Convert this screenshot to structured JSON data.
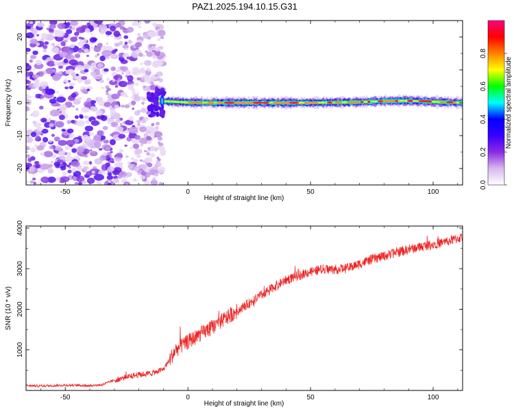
{
  "title": "PAZ1.2025.194.10.15.G31",
  "chart_data": [
    {
      "type": "heatmap",
      "xlabel": "Height of straight line (km)",
      "ylabel": "Frequency (Hz)",
      "xlim": [
        -66,
        112
      ],
      "ylim": [
        -25,
        25
      ],
      "x_ticks": [
        -50,
        0,
        50,
        100
      ],
      "y_ticks": [
        -20,
        -10,
        0,
        10,
        20
      ],
      "colorbar": {
        "label": "Normalized spectral amplitude",
        "range": [
          0,
          1
        ],
        "ticks": [
          "0.0",
          "0.2",
          "0.4",
          "0.6",
          "0.8"
        ],
        "colors": [
          "#ffffff",
          "#d7b8f0",
          "#8a2be2",
          "#3a00ff",
          "#0000ff",
          "#00ffff",
          "#00ff00",
          "#ffff00",
          "#ff8000",
          "#ff0000",
          "#ff0080"
        ]
      },
      "noise_region_x": [
        -66,
        -10
      ],
      "signal_trace": {
        "x": [
          -12,
          -8,
          0,
          10,
          20,
          30,
          40,
          50,
          60,
          70,
          80,
          90,
          100,
          112
        ],
        "frequency": [
          0.5,
          0.4,
          0.1,
          0.0,
          0.0,
          0.0,
          0.0,
          0.0,
          0.1,
          0.2,
          0.5,
          0.6,
          0.3,
          0.0
        ]
      }
    },
    {
      "type": "line",
      "xlabel": "Height of straight line (km)",
      "ylabel": "SNR (10 * v/v)",
      "xlim": [
        -66,
        112
      ],
      "ylim": [
        0,
        4050
      ],
      "x_ticks": [
        -50,
        0,
        50,
        100
      ],
      "y_ticks": [
        1000,
        2000,
        3000,
        4000
      ],
      "series": [
        {
          "color": "#ee2222",
          "x": [
            -66,
            -60,
            -50,
            -40,
            -35,
            -30,
            -25,
            -20,
            -15,
            -10,
            -7,
            -5,
            0,
            5,
            10,
            15,
            20,
            25,
            30,
            35,
            40,
            45,
            50,
            55,
            60,
            65,
            70,
            75,
            80,
            85,
            90,
            95,
            100,
            105,
            110,
            112
          ],
          "values": [
            120,
            110,
            130,
            120,
            140,
            250,
            330,
            390,
            420,
            520,
            800,
            1000,
            1200,
            1380,
            1560,
            1760,
            1950,
            2150,
            2350,
            2550,
            2720,
            2830,
            2930,
            2990,
            2980,
            3010,
            3120,
            3230,
            3310,
            3400,
            3470,
            3540,
            3600,
            3660,
            3740,
            3780
          ]
        }
      ]
    }
  ]
}
